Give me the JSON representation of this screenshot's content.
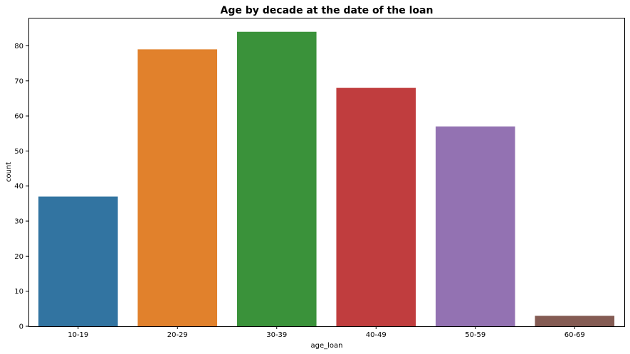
{
  "chart_data": {
    "type": "bar",
    "title": "Age by decade at the date of the loan",
    "xlabel": "age_loan",
    "ylabel": "count",
    "categories": [
      "10-19",
      "20-29",
      "30-39",
      "40-49",
      "50-59",
      "60-69"
    ],
    "values": [
      37,
      79,
      84,
      68,
      57,
      3
    ],
    "colors": [
      "#3274a1",
      "#e1812c",
      "#3a923a",
      "#c03d3e",
      "#9372b2",
      "#845b53"
    ],
    "ylim": [
      0,
      88
    ],
    "yticks": [
      0,
      10,
      20,
      30,
      40,
      50,
      60,
      70,
      80
    ],
    "grid": false,
    "legend": "none"
  }
}
